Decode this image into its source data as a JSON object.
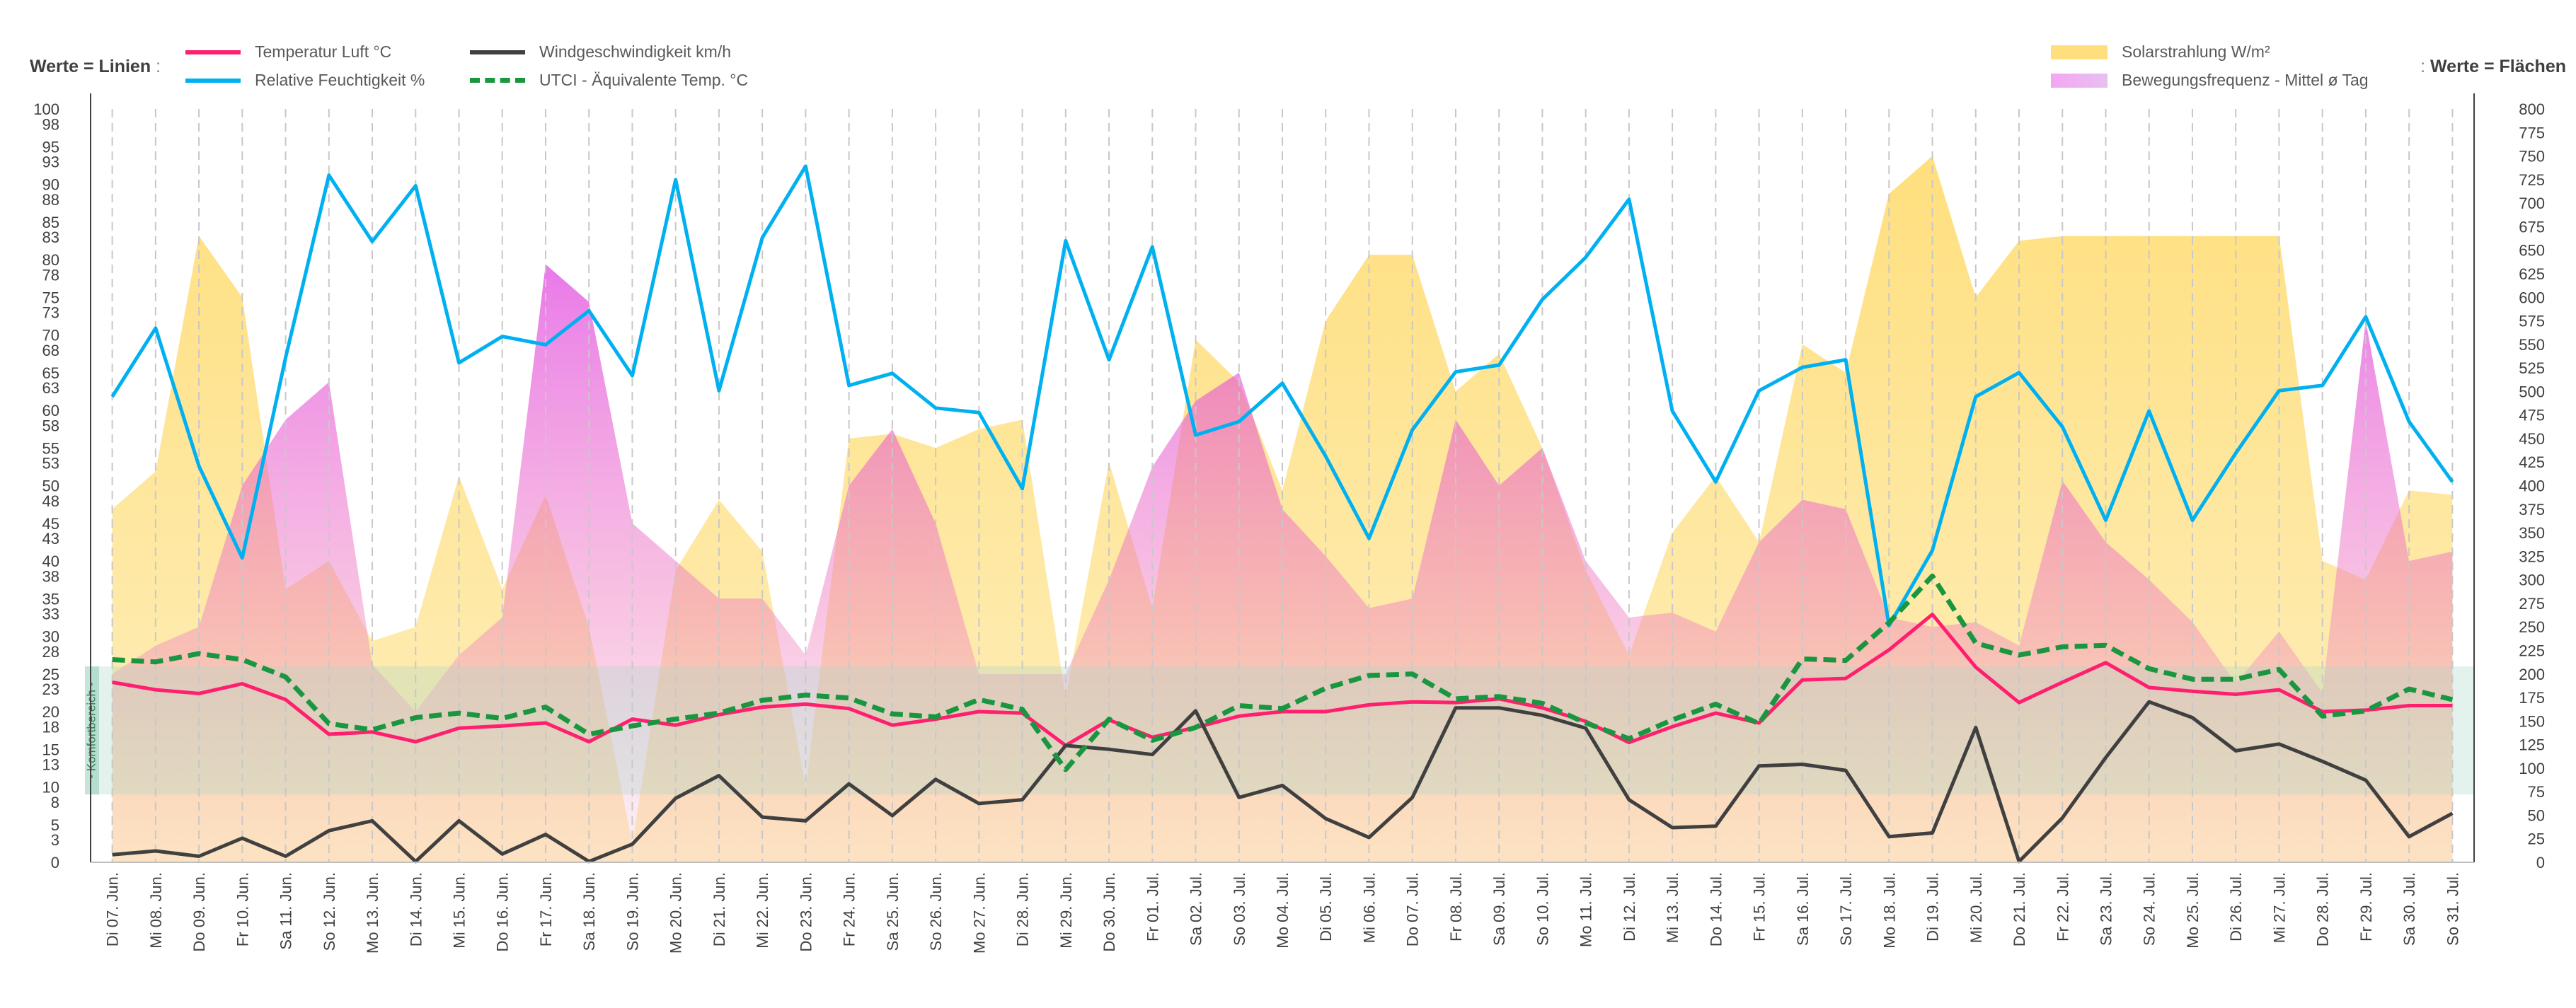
{
  "chart_data": {
    "type": "line+area",
    "left_axis_title": "Werte = Linien",
    "right_axis_title": "Werte = Flächen",
    "comfort_label": "Komfortbereich",
    "comfort_range": [
      9,
      26
    ],
    "left_ylim": [
      0,
      100
    ],
    "right_ylim": [
      0,
      800
    ],
    "left_ticks": [
      0,
      3,
      5,
      8,
      10,
      13,
      15,
      18,
      20,
      23,
      25,
      28,
      30,
      33,
      35,
      38,
      40,
      43,
      45,
      48,
      50,
      53,
      55,
      58,
      60,
      63,
      65,
      68,
      70,
      73,
      75,
      78,
      80,
      83,
      85,
      88,
      90,
      93,
      95,
      98,
      100
    ],
    "right_ticks": [
      0,
      25,
      50,
      75,
      100,
      125,
      150,
      175,
      200,
      225,
      250,
      275,
      300,
      325,
      350,
      375,
      400,
      425,
      450,
      475,
      500,
      525,
      550,
      575,
      600,
      625,
      650,
      675,
      700,
      725,
      750,
      775,
      800
    ],
    "categories": [
      "Di 07. Jun.",
      "Mi 08. Jun.",
      "Do 09. Jun.",
      "Fr 10. Jun.",
      "Sa 11. Jun.",
      "So 12. Jun.",
      "Mo 13. Jun.",
      "Di 14. Jun.",
      "Mi 15. Jun.",
      "Do 16. Jun.",
      "Fr 17. Jun.",
      "Sa 18. Jun.",
      "So 19. Jun.",
      "Mo 20. Jun.",
      "Di 21. Jun.",
      "Mi 22. Jun.",
      "Do 23. Jun.",
      "Fr 24. Jun.",
      "Sa 25. Jun.",
      "So 26. Jun.",
      "Mo 27. Jun.",
      "Di 28. Jun.",
      "Mi 29. Jun.",
      "Do 30. Jun.",
      "Fr 01. Jul.",
      "Sa 02. Jul.",
      "So 03. Jul.",
      "Mo 04. Jul.",
      "Di 05. Jul.",
      "Mi 06. Jul.",
      "Do 07. Jul.",
      "Fr 08. Jul.",
      "Sa 09. Jul.",
      "So 10. Jul.",
      "Mo 11. Jul.",
      "Di 12. Jul.",
      "Mi 13. Jul.",
      "Do 14. Jul.",
      "Fr 15. Jul.",
      "Sa 16. Jul.",
      "So 17. Jul.",
      "Mo 18. Jul.",
      "Di 19. Jul.",
      "Mi 20. Jul.",
      "Do 21. Jul.",
      "Fr 22. Jul.",
      "Sa 23. Jul.",
      "So 24. Jul.",
      "Mo 25. Jul.",
      "Di 26. Jul.",
      "Mi 27. Jul.",
      "Do 28. Jul.",
      "Fr 29. Jul.",
      "Sa 30. Jul.",
      "So 31. Jul."
    ],
    "line_series": [
      {
        "name": "Temperatur Luft °C",
        "color": "#ff1f6f",
        "dash": false,
        "values": [
          23.9,
          22.9,
          22.4,
          23.7,
          21.6,
          17,
          17.3,
          16,
          17.8,
          18.1,
          18.5,
          16,
          19,
          18.2,
          19.6,
          20.6,
          21,
          20.4,
          18.2,
          19,
          20,
          19.8,
          15.5,
          18.9,
          16.6,
          17.9,
          19.4,
          20,
          20,
          20.9,
          21.3,
          21.2,
          21.7,
          20.5,
          18.7,
          15.9,
          18,
          19.8,
          18.5,
          24.2,
          24.4,
          28.2,
          32.9,
          25.9,
          21.2,
          23.9,
          26.5,
          23.2,
          22.7,
          22.3,
          22.9,
          20,
          20.2,
          20.8,
          20.8
        ]
      },
      {
        "name": "Relative Feuchtigkeit %",
        "color": "#00b0f0",
        "dash": false,
        "values": [
          61.8,
          70.9,
          52.6,
          40.4,
          67,
          91.2,
          82.4,
          89.8,
          66.3,
          69.8,
          68.7,
          73.2,
          64.6,
          90.6,
          62.6,
          82.9,
          92.4,
          63.3,
          64.9,
          60.3,
          59.7,
          49.6,
          82.5,
          66.7,
          81.7,
          56.7,
          58.5,
          63.6,
          53.9,
          43,
          57.4,
          65.1,
          66,
          74.7,
          80.3,
          88,
          59.9,
          50.5,
          62.6,
          65.7,
          66.7,
          31.4,
          41.4,
          61.8,
          65,
          57.8,
          45.4,
          59.9,
          45.4,
          54.3,
          62.6,
          63.3,
          72.4,
          58.5,
          50.5
        ]
      },
      {
        "name": "Windgeschwindigkeit km/h",
        "color": "#404040",
        "dash": false,
        "values": [
          1,
          1.5,
          0.8,
          3.2,
          0.8,
          4.2,
          5.5,
          0.1,
          5.5,
          1.1,
          3.7,
          0.1,
          2.4,
          8.5,
          11.5,
          6,
          5.5,
          10.4,
          6.2,
          11,
          7.8,
          8.3,
          15.5,
          15,
          14.3,
          20.1,
          8.6,
          10.2,
          5.8,
          3.3,
          8.6,
          20.5,
          20.5,
          19.5,
          17.8,
          8.3,
          4.6,
          4.8,
          12.8,
          13,
          12.2,
          3.4,
          3.9,
          17.9,
          0.1,
          5.9,
          13.9,
          21.3,
          19.2,
          14.8,
          15.7,
          13.4,
          10.9,
          3.4,
          6.5
        ]
      },
      {
        "name": "UTCI - Äquivalente Temp. °C",
        "color": "#1a9641",
        "dash": true,
        "values": [
          26.9,
          26.6,
          27.7,
          26.9,
          24.6,
          18.4,
          17.6,
          19.2,
          19.8,
          19.1,
          20.6,
          17,
          18.1,
          19,
          19.8,
          21.5,
          22.2,
          21.8,
          19.7,
          19.3,
          21.6,
          20.3,
          12.3,
          19,
          16.2,
          17.9,
          20.8,
          20.4,
          23.1,
          24.8,
          25,
          21.7,
          22,
          21.1,
          18.5,
          16.4,
          18.9,
          21,
          18.4,
          27,
          26.8,
          31.8,
          38,
          29.1,
          27.5,
          28.6,
          28.8,
          25.7,
          24.3,
          24.3,
          25.6,
          19.4,
          20.1,
          23,
          21.6
        ]
      }
    ],
    "area_series": [
      {
        "name": "Solarstrahlung W/m²",
        "color": "#ffd966",
        "values": [
          375,
          415,
          665,
          600,
          290,
          320,
          235,
          250,
          410,
          290,
          390,
          250,
          20,
          310,
          385,
          330,
          80,
          450,
          455,
          440,
          460,
          470,
          175,
          425,
          270,
          555,
          510,
          395,
          575,
          645,
          645,
          500,
          540,
          440,
          310,
          220,
          350,
          410,
          340,
          550,
          520,
          710,
          750,
          600,
          660,
          665,
          665,
          665,
          665,
          665,
          665,
          320,
          300,
          395,
          390
        ]
      },
      {
        "name": "Bewegungsfrequenz - Mittel ø Tag",
        "color": "#e040e0",
        "values": [
          200,
          230,
          250,
          400,
          470,
          510,
          210,
          160,
          220,
          260,
          635,
          595,
          360,
          320,
          280,
          280,
          220,
          400,
          460,
          360,
          200,
          200,
          200,
          300,
          420,
          490,
          520,
          375,
          325,
          270,
          280,
          470,
          400,
          440,
          320,
          260,
          265,
          245,
          340,
          385,
          375,
          260,
          250,
          255,
          230,
          405,
          340,
          300,
          255,
          190,
          245,
          180,
          575,
          320,
          330
        ]
      }
    ]
  }
}
